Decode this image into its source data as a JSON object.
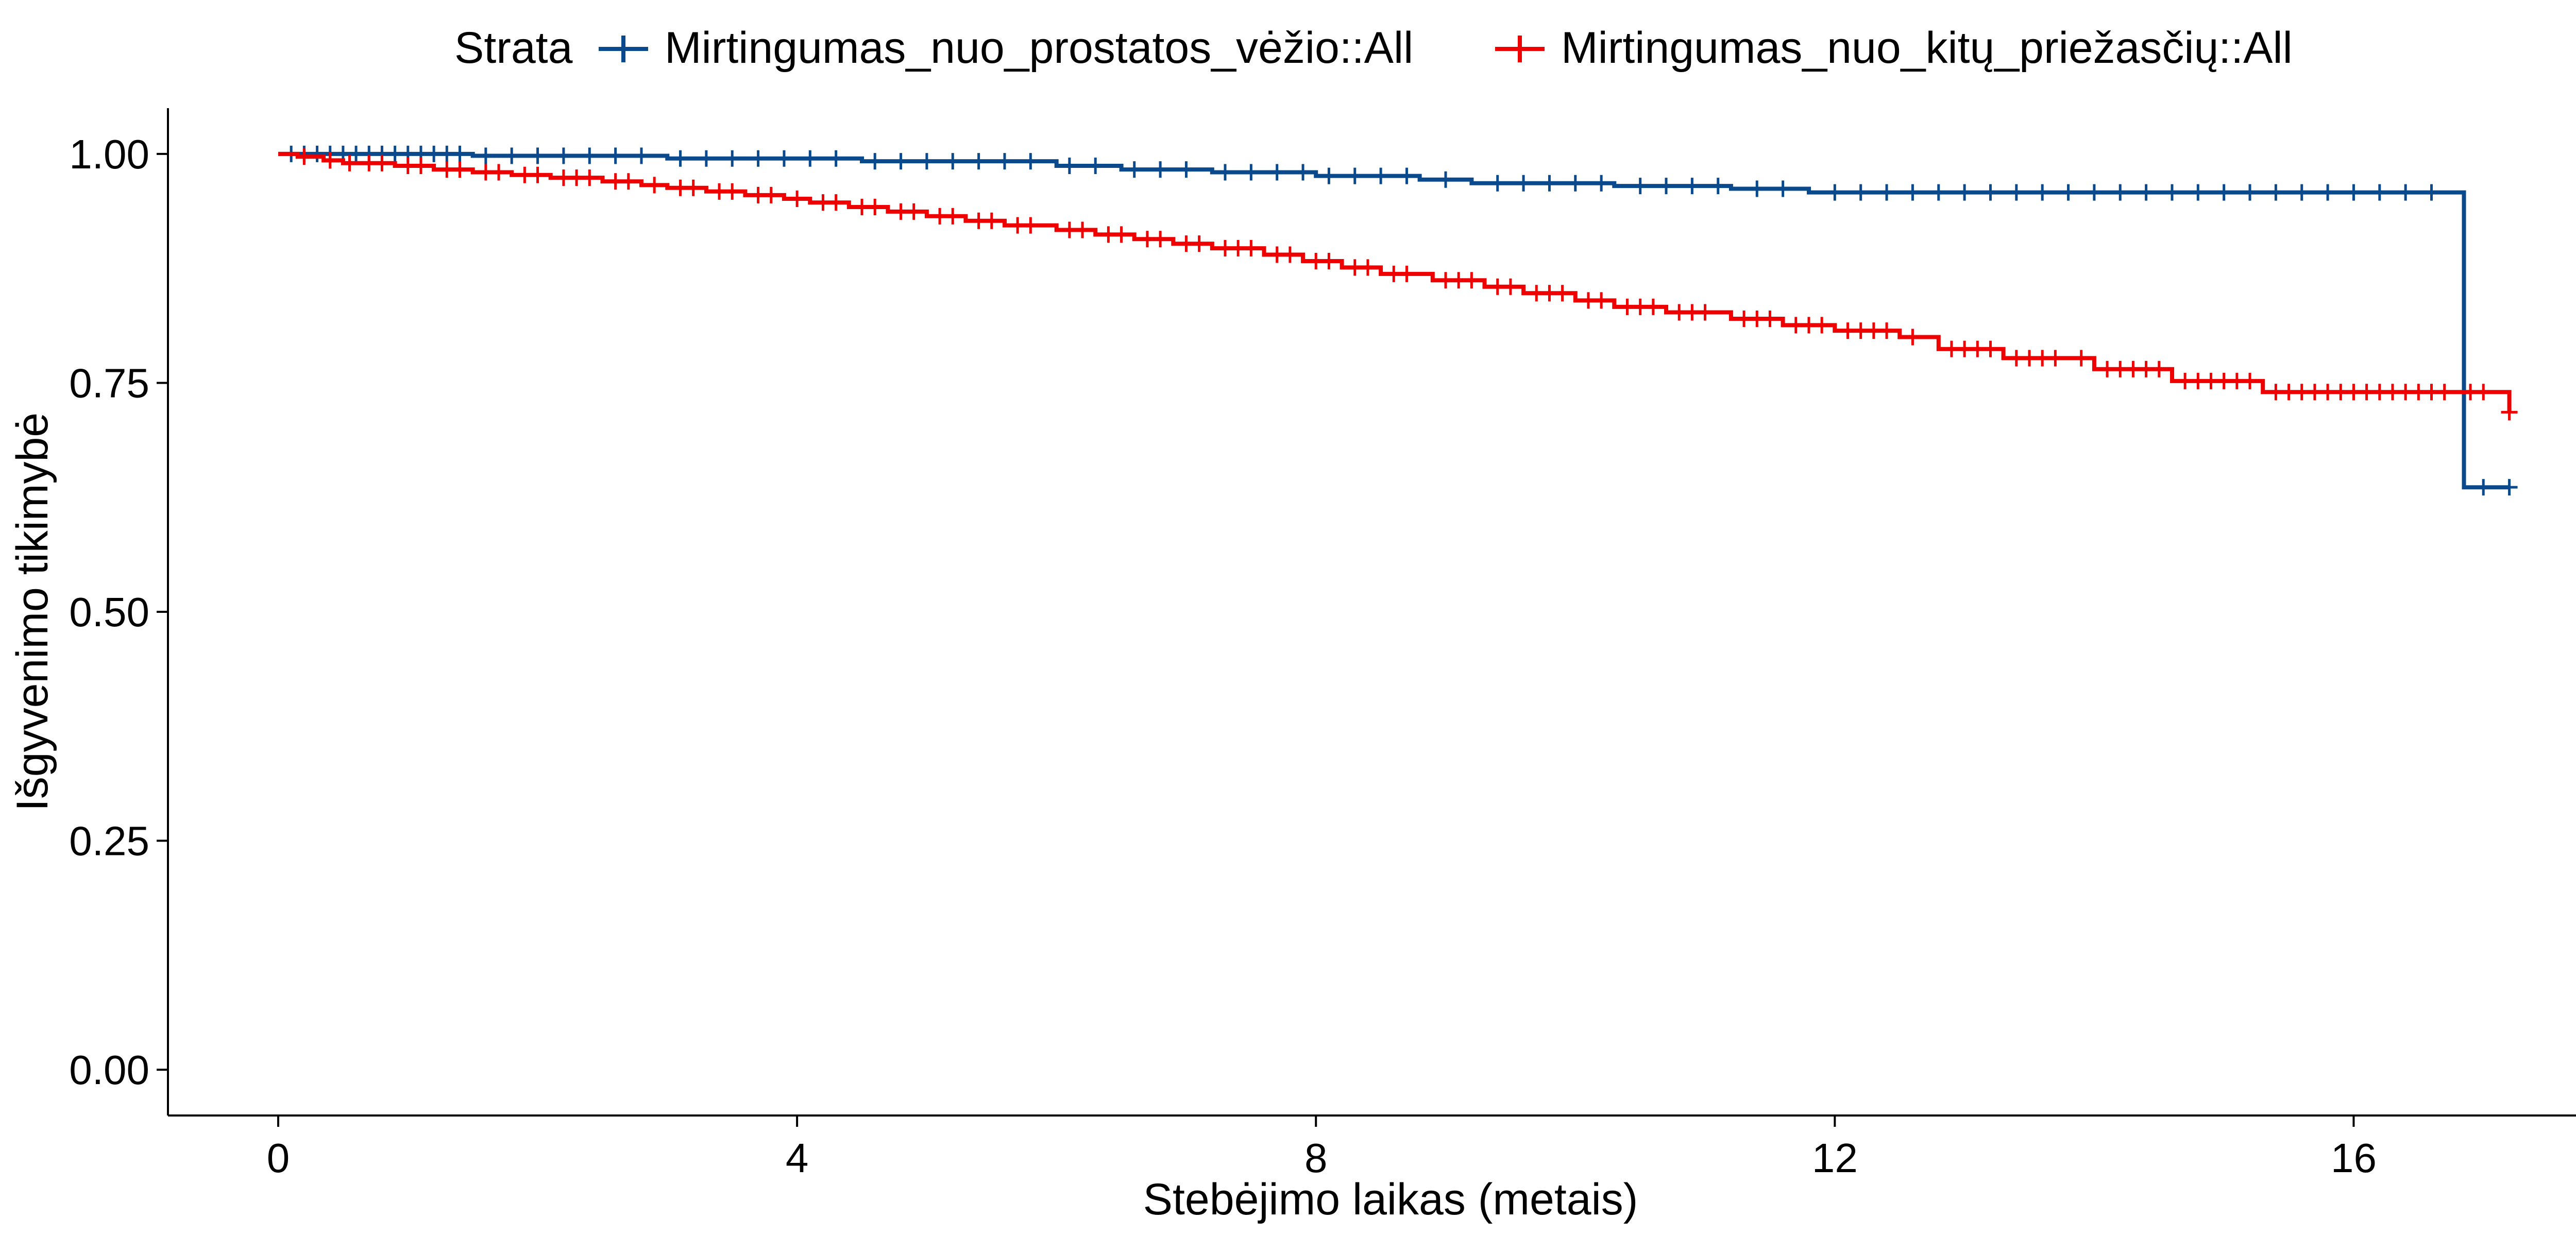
{
  "chart_data": {
    "type": "line",
    "step": true,
    "xlabel": "Stebėjimo laikas (metais)",
    "ylabel": "Išgyvenimo tikimybė",
    "xlim": [
      -0.85,
      18.0
    ],
    "ylim": [
      -0.05,
      1.05
    ],
    "xticks": [
      0,
      4,
      8,
      12,
      16
    ],
    "xtick_labels": [
      "0",
      "4",
      "8",
      "12",
      "16"
    ],
    "yticks": [
      0,
      0.25,
      0.5,
      0.75,
      1.0
    ],
    "ytick_labels": [
      "0.00",
      "0.25",
      "0.50",
      "0.75",
      "1.00"
    ],
    "grid": false,
    "legend": {
      "position": "top",
      "title": "Strata",
      "items": [
        "Mirtingumas_nuo_prostatos_vėžio::All",
        "Mirtingumas_nuo_kitų_priežasčių::All"
      ]
    },
    "series": [
      {
        "name": "Mirtingumas_nuo_prostatos_vėžio::All",
        "color": "#0a4a8c",
        "x": [
          0,
          1.5,
          3.0,
          4.5,
          6.0,
          6.5,
          7.2,
          8.0,
          8.8,
          9.2,
          10.3,
          11.2,
          11.8,
          16.85,
          17.2
        ],
        "y": [
          1.0,
          0.998,
          0.995,
          0.992,
          0.987,
          0.983,
          0.98,
          0.976,
          0.972,
          0.968,
          0.965,
          0.962,
          0.958,
          0.636,
          0.636
        ],
        "censor_x": [
          0.1,
          0.2,
          0.3,
          0.4,
          0.5,
          0.6,
          0.7,
          0.8,
          0.9,
          1.0,
          1.1,
          1.2,
          1.3,
          1.4,
          1.6,
          1.8,
          2.0,
          2.2,
          2.4,
          2.6,
          2.8,
          3.1,
          3.3,
          3.5,
          3.7,
          3.9,
          4.1,
          4.3,
          4.6,
          4.8,
          5.0,
          5.2,
          5.4,
          5.6,
          5.8,
          6.1,
          6.3,
          6.6,
          6.8,
          7.0,
          7.3,
          7.5,
          7.7,
          7.9,
          8.1,
          8.3,
          8.5,
          8.7,
          9.0,
          9.4,
          9.6,
          9.8,
          10.0,
          10.2,
          10.5,
          10.7,
          10.9,
          11.1,
          11.4,
          11.6,
          12.0,
          12.2,
          12.4,
          12.6,
          12.8,
          13.0,
          13.2,
          13.4,
          13.6,
          13.8,
          14.0,
          14.2,
          14.4,
          14.6,
          14.8,
          15.0,
          15.2,
          15.4,
          15.6,
          15.8,
          16.0,
          16.2,
          16.4,
          16.6,
          17.0,
          17.2
        ]
      },
      {
        "name": "Mirtingumas_nuo_kitų_priežasčių::All",
        "color": "#ee0000",
        "x": [
          0,
          0.15,
          0.35,
          0.5,
          0.9,
          1.2,
          1.5,
          1.8,
          2.1,
          2.5,
          2.8,
          3.0,
          3.3,
          3.6,
          3.9,
          4.1,
          4.4,
          4.7,
          5.0,
          5.3,
          5.6,
          6.0,
          6.3,
          6.6,
          6.9,
          7.2,
          7.6,
          7.9,
          8.2,
          8.5,
          8.9,
          9.3,
          9.6,
          10.0,
          10.3,
          10.7,
          11.2,
          11.6,
          12.0,
          12.5,
          12.8,
          13.3,
          14.0,
          14.6,
          15.3,
          17.2
        ],
        "y": [
          1.0,
          0.997,
          0.993,
          0.99,
          0.987,
          0.983,
          0.98,
          0.977,
          0.974,
          0.97,
          0.966,
          0.963,
          0.959,
          0.955,
          0.951,
          0.947,
          0.942,
          0.937,
          0.932,
          0.927,
          0.922,
          0.917,
          0.912,
          0.907,
          0.902,
          0.897,
          0.89,
          0.883,
          0.876,
          0.869,
          0.862,
          0.855,
          0.848,
          0.84,
          0.833,
          0.827,
          0.82,
          0.813,
          0.807,
          0.8,
          0.787,
          0.777,
          0.765,
          0.752,
          0.74,
          0.718
        ],
        "censor_x": [
          0.2,
          0.4,
          0.55,
          0.7,
          0.8,
          1.0,
          1.1,
          1.3,
          1.4,
          1.6,
          1.7,
          1.9,
          2.0,
          2.2,
          2.3,
          2.4,
          2.6,
          2.7,
          2.9,
          3.1,
          3.2,
          3.4,
          3.5,
          3.7,
          3.8,
          4.0,
          4.2,
          4.3,
          4.5,
          4.6,
          4.8,
          4.9,
          5.1,
          5.2,
          5.4,
          5.5,
          5.7,
          5.8,
          6.1,
          6.2,
          6.4,
          6.5,
          6.7,
          6.8,
          7.0,
          7.1,
          7.3,
          7.4,
          7.5,
          7.7,
          7.8,
          8.0,
          8.1,
          8.3,
          8.4,
          8.6,
          8.7,
          9.0,
          9.1,
          9.2,
          9.4,
          9.5,
          9.7,
          9.8,
          9.9,
          10.1,
          10.2,
          10.4,
          10.5,
          10.6,
          10.8,
          10.9,
          11.0,
          11.3,
          11.4,
          11.5,
          11.7,
          11.8,
          11.9,
          12.1,
          12.2,
          12.3,
          12.4,
          12.6,
          12.9,
          13.0,
          13.1,
          13.2,
          13.4,
          13.5,
          13.6,
          13.7,
          13.9,
          14.1,
          14.2,
          14.3,
          14.4,
          14.5,
          14.7,
          14.8,
          14.9,
          15.0,
          15.1,
          15.2,
          15.4,
          15.5,
          15.6,
          15.7,
          15.8,
          15.9,
          16.0,
          16.1,
          16.2,
          16.3,
          16.4,
          16.5,
          16.6,
          16.7,
          16.9,
          17.0,
          17.2
        ]
      }
    ]
  }
}
